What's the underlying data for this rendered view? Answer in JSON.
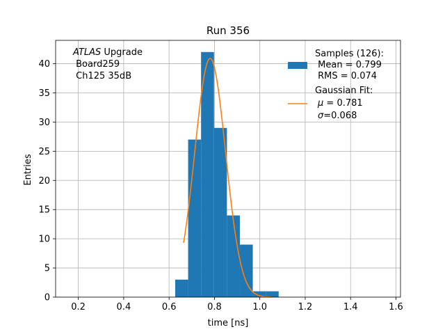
{
  "chart_data": {
    "type": "bar",
    "title": "Run 356",
    "xlabel": "time [ns]",
    "ylabel": "Entries",
    "xlim": [
      0.1,
      1.62
    ],
    "ylim": [
      0,
      44
    ],
    "xticks": [
      0.2,
      0.4,
      0.6,
      0.8,
      1.0,
      1.2,
      1.4,
      1.6
    ],
    "xtick_labels": [
      "0.2",
      "0.4",
      "0.6",
      "0.8",
      "1.0",
      "1.2",
      "1.4",
      "1.6"
    ],
    "yticks": [
      0,
      5,
      10,
      15,
      20,
      25,
      30,
      35,
      40
    ],
    "ytick_labels": [
      "0",
      "5",
      "10",
      "15",
      "20",
      "25",
      "30",
      "35",
      "40"
    ],
    "grid": true,
    "histogram": {
      "bin_edges": [
        0.627,
        0.684,
        0.741,
        0.798,
        0.855,
        0.912,
        0.969,
        1.026,
        1.083
      ],
      "counts": [
        3,
        27,
        42,
        29,
        14,
        9,
        1,
        1
      ],
      "color": "#1f77b4"
    },
    "fit": {
      "type": "gaussian",
      "mu": 0.781,
      "sigma": 0.068,
      "amplitude": 40.9,
      "x_range": [
        0.664,
        1.05
      ],
      "color": "#ff7f0e"
    },
    "annotation": {
      "atlas": "ATLAS",
      "upgrade": " Upgrade",
      "line2": " Board259",
      "line3": " Ch125 35dB"
    },
    "legend": {
      "placement": "top-right",
      "samples_title": "Samples (126):",
      "samples_mean": " Mean = 0.799",
      "samples_rms": " RMS = 0.074",
      "fit_title": "Gaussian Fit:",
      "fit_mu_symbol": "μ",
      "fit_mu_value": " = 0.781",
      "fit_sigma_symbol": "σ",
      "fit_sigma_value": "=0.068"
    }
  }
}
